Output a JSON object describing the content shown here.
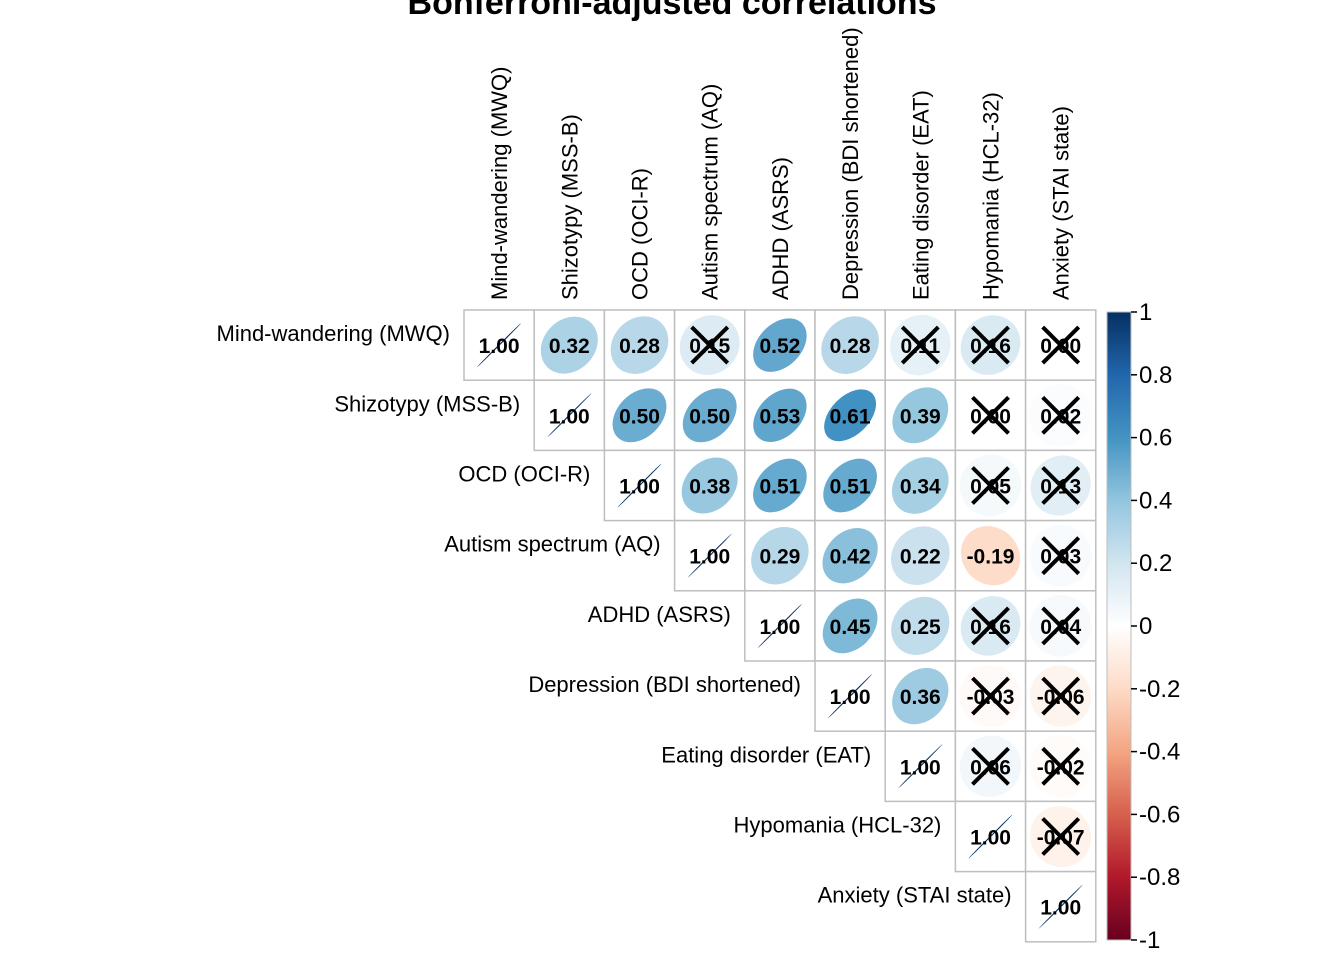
{
  "chart_data": {
    "type": "heatmap",
    "title": "Bonferroni-adjusted correlations",
    "variables": [
      "Mind-wandering (MWQ)",
      "Shizotypy (MSS-B)",
      "OCD (OCI-R)",
      "Autism spectrum (AQ)",
      "ADHD (ASRS)",
      "Depression (BDI shortened)",
      "Eating disorder (EAT)",
      "Hypomania (HCL-32)",
      "Anxiety (STAI state)"
    ],
    "matrix": [
      [
        1.0,
        0.32,
        0.28,
        0.15,
        0.52,
        0.28,
        0.11,
        0.16,
        0.0
      ],
      [
        null,
        1.0,
        0.5,
        0.5,
        0.53,
        0.61,
        0.39,
        0.0,
        0.02
      ],
      [
        null,
        null,
        1.0,
        0.38,
        0.51,
        0.51,
        0.34,
        0.05,
        0.13
      ],
      [
        null,
        null,
        null,
        1.0,
        0.29,
        0.42,
        0.22,
        -0.19,
        0.03
      ],
      [
        null,
        null,
        null,
        null,
        1.0,
        0.45,
        0.25,
        0.16,
        0.04
      ],
      [
        null,
        null,
        null,
        null,
        null,
        1.0,
        0.36,
        -0.03,
        -0.06
      ],
      [
        null,
        null,
        null,
        null,
        null,
        null,
        1.0,
        0.06,
        -0.02
      ],
      [
        null,
        null,
        null,
        null,
        null,
        null,
        null,
        1.0,
        -0.07
      ],
      [
        null,
        null,
        null,
        null,
        null,
        null,
        null,
        null,
        1.0
      ]
    ],
    "labels": [
      [
        "1.00",
        "0.32",
        "0.28",
        "0.15",
        "0.52",
        "0.28",
        "0.11",
        "0.16",
        "0.00"
      ],
      [
        null,
        "1.00",
        "0.50",
        "0.50",
        "0.53",
        "0.61",
        "0.39",
        "0.00",
        "0.02"
      ],
      [
        null,
        null,
        "1.00",
        "0.38",
        "0.51",
        "0.51",
        "0.34",
        "0.05",
        "0.13"
      ],
      [
        null,
        null,
        null,
        "1.00",
        "0.29",
        "0.42",
        "0.22",
        "-0.19",
        "0.03"
      ],
      [
        null,
        null,
        null,
        null,
        "1.00",
        "0.45",
        "0.25",
        "0.16",
        "0.04"
      ],
      [
        null,
        null,
        null,
        null,
        null,
        "1.00",
        "0.36",
        "-0.03",
        "-0.06"
      ],
      [
        null,
        null,
        null,
        null,
        null,
        null,
        "1.00",
        "0.06",
        "-0.02"
      ],
      [
        null,
        null,
        null,
        null,
        null,
        null,
        null,
        "1.00",
        "-0.07"
      ],
      [
        null,
        null,
        null,
        null,
        null,
        null,
        null,
        null,
        "1.00"
      ]
    ],
    "non_significant": [
      [
        0,
        3
      ],
      [
        0,
        6
      ],
      [
        0,
        7
      ],
      [
        0,
        8
      ],
      [
        1,
        7
      ],
      [
        1,
        8
      ],
      [
        2,
        7
      ],
      [
        2,
        8
      ],
      [
        3,
        8
      ],
      [
        4,
        7
      ],
      [
        4,
        8
      ],
      [
        5,
        7
      ],
      [
        5,
        8
      ],
      [
        6,
        7
      ],
      [
        6,
        8
      ],
      [
        7,
        8
      ]
    ],
    "colorbar": {
      "ticks": [
        "1",
        "0.8",
        "0.6",
        "0.4",
        "0.2",
        "0",
        "-0.2",
        "-0.4",
        "-0.6",
        "-0.8",
        "-1"
      ],
      "range": [
        -1,
        1
      ],
      "colors_low_to_high": [
        "#67001F",
        "#B2182B",
        "#D6604D",
        "#F4A582",
        "#FDDBC7",
        "#FFFFFF",
        "#D1E5F0",
        "#92C5DE",
        "#4393C3",
        "#2166AC",
        "#053061"
      ]
    },
    "grid_color": "#BEBEBE"
  }
}
